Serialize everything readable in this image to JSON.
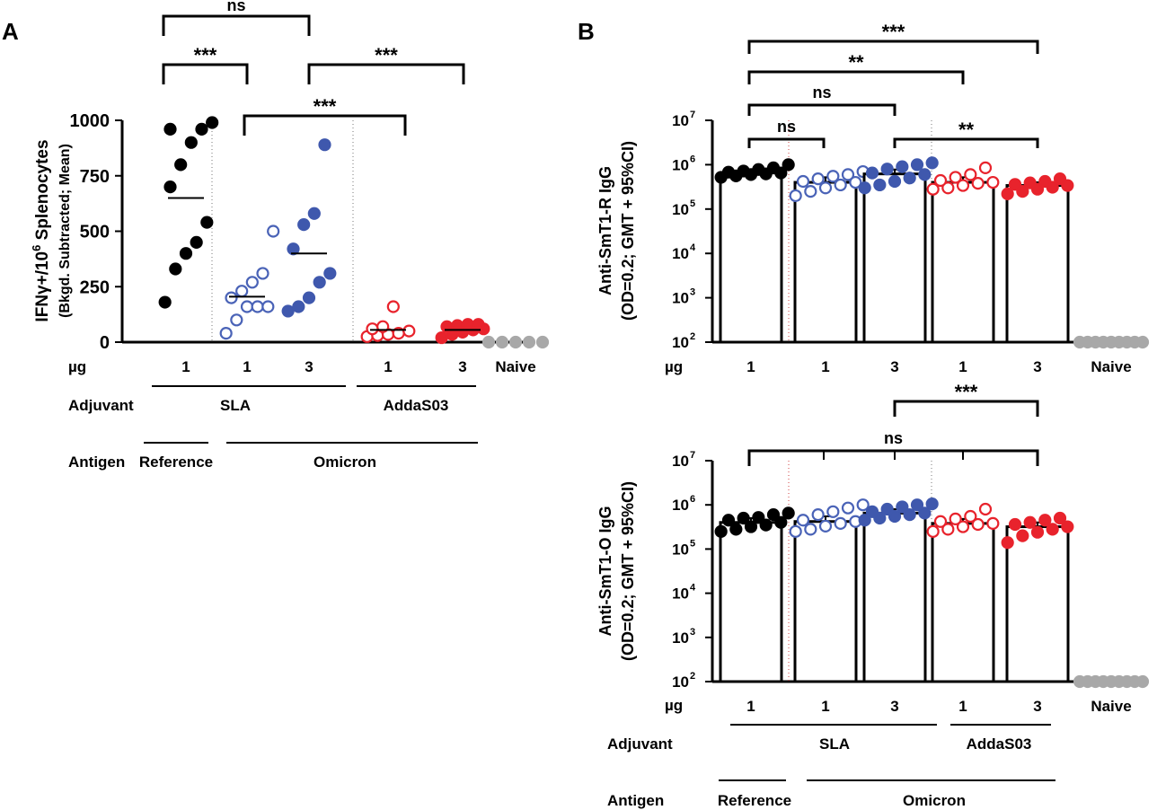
{
  "colors": {
    "ref_black": "#000000",
    "sla_open_blue": "#4a63b7",
    "sla_filled_blue": "#3f58ad",
    "adda_open_red": "#e8232c",
    "adda_filled_red": "#e8232c",
    "naive_grey": "#a8a8a8",
    "divider_grey": "#777777",
    "divider_red": "#d04040"
  },
  "chart_data": [
    {
      "panel_label": "A",
      "type": "scatter",
      "title": "",
      "ylabel_line1": "IFNγ+/10",
      "ylabel_sup": "6",
      "ylabel_line1_rest": " Splenocytes",
      "ylabel_line2": "(Bkgd. Subtracted; Mean)",
      "ylim": [
        0,
        1000
      ],
      "yticks": [
        "0",
        "250",
        "500",
        "750",
        "1000"
      ],
      "dose_axis_label": "µg",
      "groups": [
        {
          "dose": "1",
          "style": "ref_black",
          "filled": true,
          "mean": 650,
          "values": [
            180,
            330,
            400,
            450,
            540,
            700,
            800,
            900,
            960,
            990,
            960
          ]
        },
        {
          "dose": "1",
          "style": "sla_open_blue",
          "filled": false,
          "mean": 205,
          "values": [
            40,
            100,
            160,
            160,
            160,
            200,
            230,
            270,
            310,
            500
          ]
        },
        {
          "dose": "3",
          "style": "sla_filled_blue",
          "filled": true,
          "mean": 400,
          "values": [
            140,
            160,
            200,
            270,
            310,
            420,
            530,
            580,
            890
          ]
        },
        {
          "dose": "1",
          "style": "adda_open_red",
          "filled": false,
          "mean": 55,
          "values": [
            25,
            30,
            35,
            40,
            50,
            60,
            70,
            160
          ]
        },
        {
          "dose": "3",
          "style": "adda_filled_red",
          "filled": true,
          "mean": 55,
          "values": [
            20,
            35,
            45,
            55,
            60,
            70,
            75,
            80,
            80
          ]
        },
        {
          "dose": "Naive",
          "style": "naive_grey",
          "filled": true,
          "mean": 0,
          "values": [
            0,
            0,
            0,
            0,
            0
          ]
        }
      ],
      "significance": [
        {
          "from": 0,
          "to": 2,
          "label": "ns"
        },
        {
          "from": 0,
          "to": 1,
          "label": "***"
        },
        {
          "from": 2,
          "to": 4,
          "label": "***"
        },
        {
          "from": 1,
          "to": 3,
          "label": "***"
        }
      ],
      "adjuvant_label": "Adjuvant",
      "adjuvant_groups": [
        "SLA",
        "AddaS03"
      ],
      "antigen_label": "Antigen",
      "antigen_groups": [
        "Reference",
        "Omicron"
      ]
    },
    {
      "panel_label": "B",
      "type": "bar",
      "title": "",
      "ylabel_line1": "Anti-SmT1-R IgG",
      "ylabel_line2": "(OD=0.2; GMT + 95%CI)",
      "ylim": [
        100,
        10000000
      ],
      "yscale": "log",
      "yticks_base": "10",
      "yticks_exp": [
        "2",
        "3",
        "4",
        "5",
        "6",
        "7"
      ],
      "dose_axis_label": "µg",
      "groups": [
        {
          "dose": "1",
          "style": "ref_black",
          "filled": true,
          "gmt": 650000,
          "ci_high": 780000,
          "values": [
            520000,
            560000,
            600000,
            620000,
            650000,
            680000,
            720000,
            780000,
            850000,
            1000000
          ]
        },
        {
          "dose": "1",
          "style": "sla_open_blue",
          "filled": false,
          "gmt": 400000,
          "ci_high": 520000,
          "values": [
            200000,
            250000,
            300000,
            350000,
            400000,
            420000,
            480000,
            550000,
            600000,
            700000
          ]
        },
        {
          "dose": "3",
          "style": "sla_filled_blue",
          "filled": true,
          "gmt": 620000,
          "ci_high": 780000,
          "values": [
            300000,
            350000,
            420000,
            500000,
            600000,
            650000,
            800000,
            900000,
            1000000,
            1100000
          ]
        },
        {
          "dose": "1",
          "style": "adda_open_red",
          "filled": false,
          "gmt": 400000,
          "ci_high": 520000,
          "values": [
            280000,
            300000,
            340000,
            380000,
            400000,
            440000,
            520000,
            600000,
            850000
          ]
        },
        {
          "dose": "3",
          "style": "adda_filled_red",
          "filled": true,
          "gmt": 340000,
          "ci_high": 400000,
          "values": [
            220000,
            250000,
            280000,
            310000,
            340000,
            360000,
            390000,
            420000,
            480000
          ]
        },
        {
          "dose": "Naive",
          "style": "naive_grey",
          "filled": true,
          "gmt": 100,
          "ci_high": 100,
          "values": [
            100,
            100,
            100,
            100,
            100,
            100,
            100,
            100,
            100
          ]
        }
      ],
      "significance": [
        {
          "from": 0,
          "to": 4,
          "label": "***"
        },
        {
          "from": 0,
          "to": 3,
          "label": "**"
        },
        {
          "from": 0,
          "to": 2,
          "label": "ns"
        },
        {
          "from": 0,
          "to": 1,
          "label": "ns"
        },
        {
          "from": 2,
          "to": 4,
          "label": "**"
        }
      ]
    },
    {
      "panel_label": "",
      "type": "bar",
      "title": "",
      "ylabel_line1": "Anti-SmT1-O IgG",
      "ylabel_line2": "(OD=0.2; GMT + 95%CI)",
      "ylim": [
        100,
        10000000
      ],
      "yscale": "log",
      "yticks_base": "10",
      "yticks_exp": [
        "2",
        "3",
        "4",
        "5",
        "6",
        "7"
      ],
      "dose_axis_label": "µg",
      "groups": [
        {
          "dose": "1",
          "style": "ref_black",
          "filled": true,
          "gmt": 400000,
          "ci_high": 500000,
          "values": [
            250000,
            280000,
            320000,
            350000,
            400000,
            450000,
            500000,
            520000,
            600000,
            650000
          ]
        },
        {
          "dose": "1",
          "style": "sla_open_blue",
          "filled": false,
          "gmt": 420000,
          "ci_high": 550000,
          "values": [
            250000,
            280000,
            330000,
            380000,
            420000,
            450000,
            600000,
            700000,
            850000,
            1000000
          ]
        },
        {
          "dose": "3",
          "style": "sla_filled_blue",
          "filled": true,
          "gmt": 650000,
          "ci_high": 800000,
          "values": [
            450000,
            500000,
            550000,
            600000,
            650000,
            700000,
            800000,
            900000,
            1000000,
            1050000
          ]
        },
        {
          "dose": "1",
          "style": "adda_open_red",
          "filled": false,
          "gmt": 380000,
          "ci_high": 480000,
          "values": [
            250000,
            280000,
            320000,
            360000,
            380000,
            420000,
            480000,
            550000,
            800000
          ]
        },
        {
          "dose": "3",
          "style": "adda_filled_red",
          "filled": true,
          "gmt": 320000,
          "ci_high": 400000,
          "values": [
            140000,
            200000,
            240000,
            280000,
            320000,
            360000,
            400000,
            450000,
            500000
          ]
        },
        {
          "dose": "Naive",
          "style": "naive_grey",
          "filled": true,
          "gmt": 100,
          "ci_high": 100,
          "values": [
            100,
            100,
            100,
            100,
            100,
            100,
            100,
            100,
            100
          ]
        }
      ],
      "significance": [
        {
          "from": 2,
          "to": 4,
          "label": "***"
        },
        {
          "from": 0,
          "to": 4,
          "label": "ns"
        }
      ],
      "adjuvant_label": "Adjuvant",
      "adjuvant_groups": [
        "SLA",
        "AddaS03"
      ],
      "antigen_label": "Antigen",
      "antigen_groups": [
        "Reference",
        "Omicron"
      ]
    }
  ]
}
